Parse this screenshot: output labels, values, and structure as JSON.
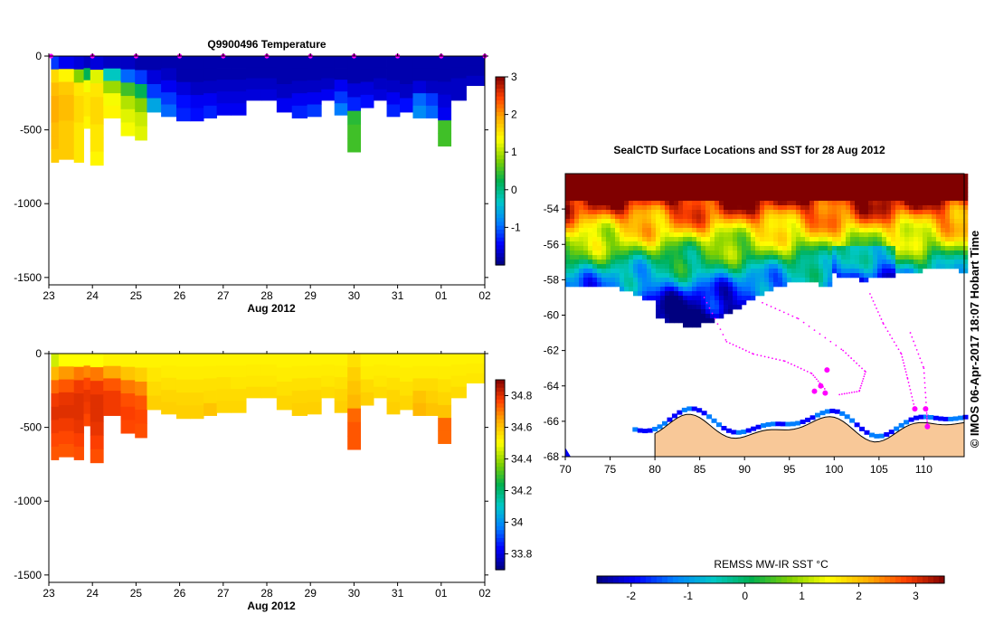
{
  "chart_data": [
    {
      "type": "heatmap",
      "name": "temperature-section",
      "title": "Q9900496  Temperature",
      "xlabel": "Aug 2012",
      "ylabel": "",
      "x_tick_labels": [
        "23",
        "24",
        "25",
        "26",
        "27",
        "28",
        "29",
        "30",
        "31",
        "01",
        "02"
      ],
      "y_tick_labels": [
        "0",
        "-500",
        "-1000",
        "-1500"
      ],
      "ylim": [
        -1550,
        0
      ],
      "xlim": [
        23,
        33
      ],
      "colorbar": {
        "min": -2,
        "max": 3,
        "ticks": [
          "3",
          "2",
          "1",
          "0",
          "-1"
        ]
      },
      "colormap": [
        "#00007f",
        "#0000ff",
        "#007fff",
        "#00c8c8",
        "#00b050",
        "#7fd000",
        "#ffff00",
        "#ffb000",
        "#ff4000",
        "#800000"
      ],
      "profiles": [
        {
          "x": 23.05,
          "bottom": -720,
          "temps": [
            -1.2,
            1.6,
            1.8,
            1.9,
            1.9,
            1.8,
            1.8,
            1.7
          ]
        },
        {
          "x": 23.4,
          "bottom": -700,
          "temps": [
            -1.5,
            1.4,
            1.7,
            1.8,
            1.8,
            1.7,
            1.7,
            1.7
          ]
        },
        {
          "x": 23.75,
          "bottom": -720,
          "temps": [
            -1.6,
            0.8,
            1.5,
            1.6,
            1.6,
            1.5,
            1.5,
            1.5
          ]
        },
        {
          "x": 23.85,
          "bottom": -490,
          "temps": [
            -1.7,
            0.2,
            1.3,
            1.5,
            1.5,
            1.4
          ]
        },
        {
          "x": 24.05,
          "bottom": -740,
          "temps": [
            -1.6,
            1.2,
            1.5,
            1.6,
            1.6,
            1.5,
            1.5,
            1.4
          ]
        },
        {
          "x": 24.45,
          "bottom": -420,
          "temps": [
            -1.7,
            -0.3,
            0.9,
            1.3,
            1.4
          ]
        },
        {
          "x": 24.85,
          "bottom": -540,
          "temps": [
            -1.7,
            -1.0,
            0.5,
            1.0,
            1.2,
            1.3
          ]
        },
        {
          "x": 25.1,
          "bottom": -570,
          "temps": [
            -1.8,
            -1.2,
            0.2,
            0.8,
            1.1,
            1.2
          ]
        },
        {
          "x": 25.4,
          "bottom": -380,
          "temps": [
            -1.8,
            -1.6,
            -1.2,
            -0.6
          ]
        },
        {
          "x": 25.75,
          "bottom": -410,
          "temps": [
            -1.8,
            -1.7,
            -1.5,
            -1.2,
            -1.0
          ]
        },
        {
          "x": 26.1,
          "bottom": -440,
          "temps": [
            -1.8,
            -1.8,
            -1.6,
            -1.4,
            -1.3
          ]
        },
        {
          "x": 26.4,
          "bottom": -440,
          "temps": [
            -1.8,
            -1.8,
            -1.7,
            -1.5,
            -1.4
          ]
        },
        {
          "x": 26.7,
          "bottom": -420,
          "temps": [
            -1.8,
            -1.8,
            -1.7,
            -1.5,
            -1.3
          ]
        },
        {
          "x": 27.0,
          "bottom": -400,
          "temps": [
            -1.8,
            -1.8,
            -1.7,
            -1.6,
            -1.5
          ]
        },
        {
          "x": 27.35,
          "bottom": -400,
          "temps": [
            -1.8,
            -1.8,
            -1.7,
            -1.6,
            -1.5
          ]
        },
        {
          "x": 27.7,
          "bottom": -300,
          "temps": [
            -1.8,
            -1.8,
            -1.7,
            -1.6
          ]
        },
        {
          "x": 28.05,
          "bottom": -300,
          "temps": [
            -1.8,
            -1.8,
            -1.7,
            -1.6
          ]
        },
        {
          "x": 28.4,
          "bottom": -380,
          "temps": [
            -1.8,
            -1.8,
            -1.7,
            -1.5
          ]
        },
        {
          "x": 28.75,
          "bottom": -420,
          "temps": [
            -1.8,
            -1.8,
            -1.7,
            -1.5,
            -1.3
          ]
        },
        {
          "x": 29.1,
          "bottom": -410,
          "temps": [
            -1.8,
            -1.8,
            -1.7,
            -1.5,
            -1.2
          ]
        },
        {
          "x": 29.4,
          "bottom": -300,
          "temps": [
            -1.8,
            -1.8,
            -1.7,
            -1.5
          ]
        },
        {
          "x": 29.7,
          "bottom": -400,
          "temps": [
            -1.8,
            -1.8,
            -1.5,
            -1.2,
            -0.9
          ]
        },
        {
          "x": 30.0,
          "bottom": -650,
          "temps": [
            -1.8,
            -1.8,
            -1.6,
            -1.3,
            0.4,
            0.5,
            0.5
          ]
        },
        {
          "x": 30.3,
          "bottom": -350,
          "temps": [
            -1.8,
            -1.8,
            -1.6,
            -1.4
          ]
        },
        {
          "x": 30.6,
          "bottom": -300,
          "temps": [
            -1.8,
            -1.8,
            -1.7,
            -1.6
          ]
        },
        {
          "x": 30.9,
          "bottom": -410,
          "temps": [
            -1.8,
            -1.8,
            -1.7,
            -1.5,
            -1.3
          ]
        },
        {
          "x": 31.2,
          "bottom": -380,
          "temps": [
            -1.8,
            -1.8,
            -1.7,
            -1.4
          ]
        },
        {
          "x": 31.5,
          "bottom": -420,
          "temps": [
            -1.8,
            -1.8,
            -1.6,
            -1.0,
            -0.8
          ]
        },
        {
          "x": 31.8,
          "bottom": -420,
          "temps": [
            -1.8,
            -1.8,
            -1.7,
            -1.2,
            -1.0
          ]
        },
        {
          "x": 32.05,
          "bottom": -610,
          "temps": [
            -1.8,
            -1.8,
            -1.7,
            -1.6,
            -1.5,
            0.5,
            0.5
          ]
        },
        {
          "x": 32.4,
          "bottom": -300,
          "temps": [
            -1.8,
            -1.8,
            -1.7,
            -1.7
          ]
        },
        {
          "x": 32.75,
          "bottom": -200,
          "temps": [
            -1.8,
            -1.8,
            -1.7
          ]
        }
      ],
      "surfacing_marks_x": [
        23.05,
        24.0,
        25.0,
        26.0,
        27.0,
        28.0,
        29.0,
        30.0,
        31.0,
        32.0,
        33.0
      ],
      "surfacing_mark_color": "#ff00ff"
    },
    {
      "type": "heatmap",
      "name": "salinity-section",
      "title": "",
      "xlabel": "Aug 2012",
      "ylabel": "",
      "x_tick_labels": [
        "23",
        "24",
        "25",
        "26",
        "27",
        "28",
        "29",
        "30",
        "31",
        "01",
        "02"
      ],
      "y_tick_labels": [
        "0",
        "-500",
        "-1000",
        "-1500"
      ],
      "ylim": [
        -1550,
        0
      ],
      "xlim": [
        23,
        33
      ],
      "colorbar": {
        "min": 33.7,
        "max": 34.9,
        "ticks": [
          "34.8",
          "34.6",
          "34.4",
          "34.2",
          "34",
          "33.8"
        ]
      },
      "colormap": [
        "#00007f",
        "#0000ff",
        "#007fff",
        "#00c8c8",
        "#00b050",
        "#7fd000",
        "#ffff00",
        "#ffb000",
        "#ff4000",
        "#800000"
      ],
      "profiles": [
        {
          "x": 23.05,
          "bottom": -720,
          "sal": [
            34.45,
            34.62,
            34.72,
            34.78,
            34.8,
            34.78,
            34.76,
            34.74
          ]
        },
        {
          "x": 23.4,
          "bottom": -700,
          "sal": [
            34.5,
            34.66,
            34.74,
            34.79,
            34.8,
            34.78,
            34.76,
            34.74
          ]
        },
        {
          "x": 23.75,
          "bottom": -720,
          "sal": [
            34.5,
            34.7,
            34.78,
            34.8,
            34.8,
            34.79,
            34.77,
            34.75
          ]
        },
        {
          "x": 23.85,
          "bottom": -490,
          "sal": [
            34.5,
            34.68,
            34.76,
            34.79,
            34.78,
            34.76
          ]
        },
        {
          "x": 24.05,
          "bottom": -740,
          "sal": [
            34.5,
            34.7,
            34.78,
            34.8,
            34.8,
            34.79,
            34.77,
            34.75
          ]
        },
        {
          "x": 24.45,
          "bottom": -420,
          "sal": [
            34.52,
            34.64,
            34.74,
            34.78,
            34.78
          ]
        },
        {
          "x": 24.85,
          "bottom": -540,
          "sal": [
            34.52,
            34.6,
            34.7,
            34.75,
            34.77,
            34.76
          ]
        },
        {
          "x": 25.1,
          "bottom": -570,
          "sal": [
            34.52,
            34.58,
            34.68,
            34.74,
            34.76,
            34.75
          ]
        },
        {
          "x": 25.4,
          "bottom": -380,
          "sal": [
            34.52,
            34.54,
            34.56,
            34.58
          ]
        },
        {
          "x": 25.75,
          "bottom": -410,
          "sal": [
            34.52,
            34.53,
            34.55,
            34.57,
            34.58
          ]
        },
        {
          "x": 26.1,
          "bottom": -440,
          "sal": [
            34.52,
            34.53,
            34.55,
            34.57,
            34.58
          ]
        },
        {
          "x": 26.4,
          "bottom": -440,
          "sal": [
            34.52,
            34.53,
            34.55,
            34.57,
            34.58
          ]
        },
        {
          "x": 26.7,
          "bottom": -420,
          "sal": [
            34.52,
            34.53,
            34.55,
            34.56,
            34.6
          ]
        },
        {
          "x": 27.0,
          "bottom": -400,
          "sal": [
            34.52,
            34.53,
            34.55,
            34.56,
            34.57
          ]
        },
        {
          "x": 27.35,
          "bottom": -400,
          "sal": [
            34.52,
            34.53,
            34.54,
            34.56,
            34.57
          ]
        },
        {
          "x": 27.7,
          "bottom": -300,
          "sal": [
            34.52,
            34.53,
            34.54,
            34.56
          ]
        },
        {
          "x": 28.05,
          "bottom": -300,
          "sal": [
            34.52,
            34.53,
            34.54,
            34.56
          ]
        },
        {
          "x": 28.4,
          "bottom": -380,
          "sal": [
            34.52,
            34.53,
            34.55,
            34.57
          ]
        },
        {
          "x": 28.75,
          "bottom": -420,
          "sal": [
            34.52,
            34.53,
            34.55,
            34.57,
            34.58
          ]
        },
        {
          "x": 29.1,
          "bottom": -410,
          "sal": [
            34.52,
            34.53,
            34.55,
            34.57,
            34.58
          ]
        },
        {
          "x": 29.4,
          "bottom": -300,
          "sal": [
            34.52,
            34.53,
            34.54,
            34.56
          ]
        },
        {
          "x": 29.7,
          "bottom": -400,
          "sal": [
            34.52,
            34.53,
            34.55,
            34.57,
            34.58
          ]
        },
        {
          "x": 30.0,
          "bottom": -650,
          "sal": [
            34.55,
            34.58,
            34.6,
            34.62,
            34.72,
            34.74,
            34.74
          ]
        },
        {
          "x": 30.3,
          "bottom": -350,
          "sal": [
            34.52,
            34.53,
            34.56,
            34.58
          ]
        },
        {
          "x": 30.6,
          "bottom": -300,
          "sal": [
            34.52,
            34.53,
            34.54,
            34.56
          ]
        },
        {
          "x": 30.9,
          "bottom": -410,
          "sal": [
            34.52,
            34.53,
            34.55,
            34.57,
            34.58
          ]
        },
        {
          "x": 31.2,
          "bottom": -380,
          "sal": [
            34.52,
            34.53,
            34.55,
            34.57
          ]
        },
        {
          "x": 31.5,
          "bottom": -420,
          "sal": [
            34.52,
            34.53,
            34.56,
            34.6,
            34.62
          ]
        },
        {
          "x": 31.8,
          "bottom": -420,
          "sal": [
            34.52,
            34.53,
            34.56,
            34.58,
            34.6
          ]
        },
        {
          "x": 32.05,
          "bottom": -610,
          "sal": [
            34.52,
            34.53,
            34.55,
            34.57,
            34.6,
            34.72,
            34.72
          ]
        },
        {
          "x": 32.4,
          "bottom": -300,
          "sal": [
            34.52,
            34.53,
            34.54,
            34.56
          ]
        },
        {
          "x": 32.75,
          "bottom": -200,
          "sal": [
            34.52,
            34.53,
            34.54
          ]
        }
      ]
    },
    {
      "type": "heatmap",
      "name": "sst-map",
      "title": "SealCTD Surface Locations and SST for 28 Aug 2012",
      "xlabel": "",
      "ylabel": "",
      "x_tick_labels": [
        "70",
        "75",
        "80",
        "85",
        "90",
        "95",
        "100",
        "105",
        "110"
      ],
      "y_tick_labels": [
        "-54",
        "-56",
        "-58",
        "-60",
        "-62",
        "-64",
        "-66",
        "-68"
      ],
      "xlim": [
        70,
        114.5
      ],
      "ylim": [
        -68,
        -52
      ],
      "credit": "© IMOS 06-Apr-2017 18:07 Hobart Time",
      "colorbar": {
        "label": "REMSS MW-IR SST °C",
        "min": -2.6,
        "max": 3.5,
        "ticks": [
          "-2",
          "-1",
          "0",
          "1",
          "2",
          "3"
        ]
      },
      "colormap": [
        "#00007f",
        "#0000ff",
        "#007fff",
        "#00c8c8",
        "#00b050",
        "#7fd000",
        "#ffff00",
        "#ffb000",
        "#ff4000",
        "#800000"
      ],
      "land_color": "#f8c898",
      "track_color": "#ff00ff",
      "seal_positions": [
        {
          "lon": 97.8,
          "lat": -64.3
        },
        {
          "lon": 99.0,
          "lat": -64.4
        },
        {
          "lon": 99.2,
          "lat": -63.1
        },
        {
          "lon": 98.5,
          "lat": -64.0
        },
        {
          "lon": 109.0,
          "lat": -65.3
        },
        {
          "lon": 110.2,
          "lat": -65.3
        },
        {
          "lon": 110.4,
          "lat": -66.3
        }
      ]
    }
  ]
}
